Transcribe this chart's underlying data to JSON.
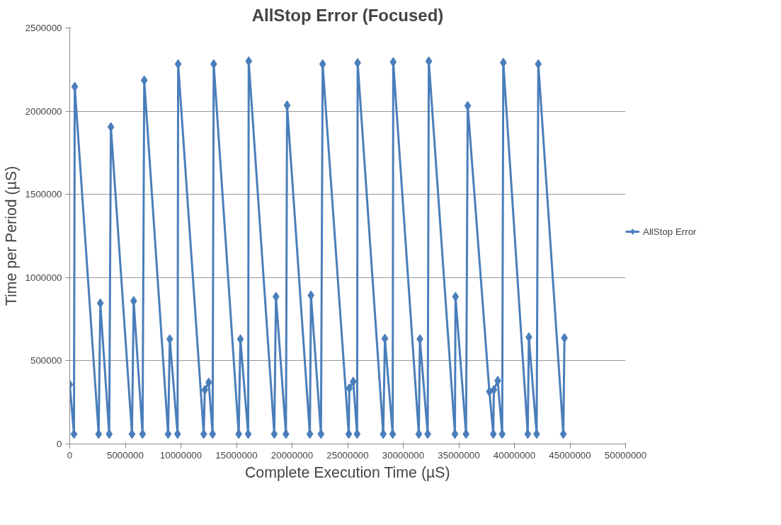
{
  "chart_data": {
    "type": "line",
    "title": "AllStop Error (Focused)",
    "xlabel": "Complete Execution Time (µS)",
    "ylabel": "Time per Period (µS)",
    "x": [
      0,
      380000,
      450000,
      2600000,
      2750000,
      3550000,
      3700000,
      5600000,
      5750000,
      6550000,
      6700000,
      8850000,
      9000000,
      9700000,
      9750000,
      12050000,
      12150000,
      12500000,
      12850000,
      12950000,
      15200000,
      15350000,
      16050000,
      16100000,
      18400000,
      18550000,
      19450000,
      19550000,
      21600000,
      21700000,
      22600000,
      22750000,
      25100000,
      25150000,
      25500000,
      25850000,
      25900000,
      28200000,
      28350000,
      29050000,
      29100000,
      31400000,
      31500000,
      32200000,
      32300000,
      34650000,
      34700000,
      35650000,
      35800000,
      37750000,
      38100000,
      38150000,
      38500000,
      38900000,
      39000000,
      41200000,
      41300000,
      42000000,
      42150000,
      44400000,
      44500000
    ],
    "series": [
      {
        "name": "AllStop Error",
        "color": "#4a7ebb",
        "values": [
          357000,
          60000,
          2147000,
          60000,
          846000,
          60000,
          1905000,
          60000,
          860000,
          60000,
          2185000,
          60000,
          630000,
          60000,
          2283000,
          60000,
          325000,
          370000,
          60000,
          2283000,
          60000,
          630000,
          60000,
          2300000,
          60000,
          885000,
          60000,
          2035000,
          60000,
          893000,
          60000,
          2283000,
          60000,
          335000,
          375000,
          60000,
          2290000,
          60000,
          633000,
          60000,
          2295000,
          60000,
          630000,
          60000,
          2300000,
          60000,
          885000,
          60000,
          2032000,
          315000,
          60000,
          325000,
          380000,
          60000,
          2292000,
          60000,
          642000,
          60000,
          2283000,
          60000,
          637000
        ]
      }
    ],
    "xlim": [
      0,
      50000000
    ],
    "xticks": [
      0,
      5000000,
      10000000,
      15000000,
      20000000,
      25000000,
      30000000,
      35000000,
      40000000,
      45000000,
      50000000
    ],
    "ylim": [
      0,
      2500000
    ],
    "yticks": [
      0,
      500000,
      1000000,
      1500000,
      2000000,
      2500000
    ],
    "grid": "y",
    "legend": "right",
    "marker": "diamond",
    "line_style": "solid"
  }
}
